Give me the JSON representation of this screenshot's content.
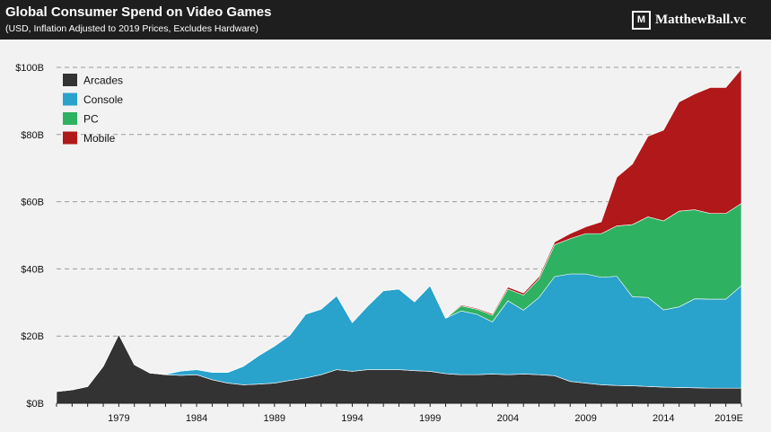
{
  "header": {
    "title": "Global Consumer Spend on Video Games",
    "subtitle": "(USD, Inflation Adjusted to 2019 Prices, Excludes Hardware)",
    "brand": "MatthewBall.vc",
    "brand_logo_letter": "M"
  },
  "chart_data": {
    "type": "area",
    "stacked": true,
    "title": "Global Consumer Spend on Video Games",
    "subtitle": "(USD, Inflation Adjusted to 2019 Prices, Excludes Hardware)",
    "xlabel": "",
    "ylabel": "",
    "ylim": [
      0,
      100
    ],
    "y_ticks": [
      0,
      20,
      40,
      60,
      80,
      100
    ],
    "y_tick_labels": [
      "$0B",
      "$20B",
      "$40B",
      "$60B",
      "$80B",
      "$100B"
    ],
    "x_tick_labels": [
      "1979",
      "1984",
      "1989",
      "1994",
      "1999",
      "2004",
      "2009",
      "2014",
      "2019E"
    ],
    "grid": "horizontal-dashed",
    "legend_position": "top-left",
    "x": [
      "1975",
      "1976",
      "1977",
      "1978",
      "1979",
      "1980",
      "1981",
      "1982",
      "1983",
      "1984",
      "1985",
      "1986",
      "1987",
      "1988",
      "1989",
      "1990",
      "1991",
      "1992",
      "1993",
      "1994",
      "1995",
      "1996",
      "1997",
      "1998",
      "1999",
      "2000",
      "2001",
      "2002",
      "2003",
      "2004",
      "2005",
      "2006",
      "2007",
      "2008",
      "2009",
      "2010",
      "2011",
      "2012",
      "2013",
      "2014",
      "2015",
      "2016",
      "2017",
      "2018",
      "2019E"
    ],
    "series": [
      {
        "name": "Arcades",
        "color": "#333333",
        "values": [
          3.5,
          4,
          5,
          11,
          20.5,
          11.5,
          9,
          8.5,
          8.3,
          8.5,
          7,
          6,
          5.5,
          5.7,
          6,
          6.8,
          7.5,
          8.5,
          10,
          9.5,
          10,
          10,
          10,
          9.7,
          9.5,
          8.8,
          8.5,
          8.5,
          8.7,
          8.5,
          8.7,
          8.5,
          8.2,
          6.5,
          6,
          5.5,
          5.3,
          5.2,
          5,
          4.8,
          4.7,
          4.6,
          4.5,
          4.5,
          4.5
        ]
      },
      {
        "name": "Console",
        "color": "#29a2cc",
        "values": [
          0,
          0,
          0,
          0,
          0,
          0,
          0,
          0.1,
          1.3,
          1.5,
          2.2,
          3.2,
          5.5,
          8.5,
          11,
          13.5,
          19,
          19.5,
          22,
          14.5,
          19,
          23.5,
          24,
          20.5,
          25.5,
          16.5,
          19,
          18,
          15.5,
          22,
          19,
          23,
          29.5,
          32,
          32.5,
          32,
          32.5,
          26.5,
          26.5,
          23,
          24,
          26.5,
          26.5,
          26.5,
          30.5
        ]
      },
      {
        "name": "PC",
        "color": "#2eb161",
        "values": [
          0,
          0,
          0,
          0,
          0,
          0,
          0,
          0,
          0,
          0,
          0,
          0,
          0,
          0,
          0,
          0,
          0,
          0,
          0,
          0,
          0,
          0,
          0,
          0,
          0,
          0,
          1.5,
          1.5,
          2,
          3.5,
          4.5,
          5.5,
          9.5,
          10.5,
          12,
          13,
          15,
          21.5,
          24,
          26.5,
          28.5,
          26.5,
          25.5,
          25.5,
          24.5
        ]
      },
      {
        "name": "Mobile",
        "color": "#b01819",
        "values": [
          0,
          0,
          0,
          0,
          0,
          0,
          0,
          0,
          0,
          0,
          0,
          0,
          0,
          0,
          0,
          0,
          0,
          0,
          0,
          0,
          0,
          0,
          0,
          0.1,
          0.2,
          0.2,
          0.3,
          0.3,
          0.4,
          0.6,
          0.6,
          0.7,
          0.8,
          1.5,
          2,
          3.5,
          14.5,
          18,
          24,
          27,
          32.5,
          34.5,
          37.5,
          37.5,
          40
        ]
      }
    ]
  }
}
